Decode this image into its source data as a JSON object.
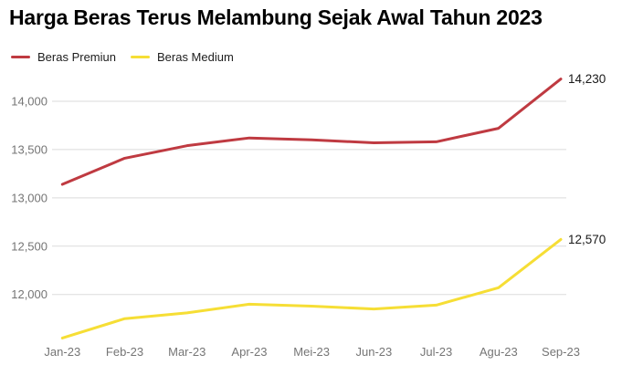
{
  "header": {
    "title": "Harga Beras Terus Melambung Sejak Awal Tahun 2023"
  },
  "chart_data": {
    "type": "line",
    "title": "Harga Beras Terus Melambung Sejak Awal Tahun 2023",
    "categories": [
      "Jan-23",
      "Feb-23",
      "Mar-23",
      "Apr-23",
      "Mei-23",
      "Jun-23",
      "Jul-23",
      "Agu-23",
      "Sep-23"
    ],
    "series": [
      {
        "name": "Beras Premiun",
        "color": "#bf3a41",
        "values": [
          13140,
          13410,
          13540,
          13620,
          13600,
          13570,
          13580,
          13720,
          14230
        ],
        "end_label": "14,230"
      },
      {
        "name": "Beras Medium",
        "color": "#f6de35",
        "values": [
          11550,
          11750,
          11810,
          11900,
          11880,
          11850,
          11890,
          12070,
          12570
        ],
        "end_label": "12,570"
      }
    ],
    "yticks": [
      12000,
      12500,
      13000,
      13500,
      14000
    ],
    "ytick_labels": [
      "12,000",
      "12,500",
      "13,000",
      "13,500",
      "14,000"
    ],
    "ylim": [
      11500,
      14330
    ],
    "xlabel": "",
    "ylabel": "",
    "grid": "horizontal-only",
    "legend_position": "top-left",
    "colors": {
      "axis_text": "#757575",
      "gridline": "#dbdbdb",
      "end_label_text": "#1a1a1a",
      "title_text": "#000000"
    }
  }
}
